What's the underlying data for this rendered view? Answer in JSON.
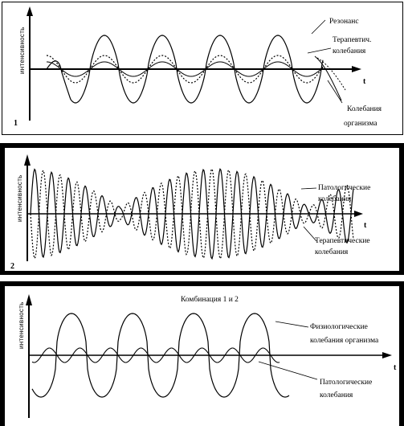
{
  "ylabel": "интенсивность",
  "t_label": "t",
  "panel1": {
    "number": "1",
    "resonance": "Резонанс",
    "therapeutic_line1": "Терапевтич.",
    "therapeutic_line2": "колебания",
    "organism_line1": "Колебания",
    "organism_line2": "организма"
  },
  "panel2": {
    "number": "2",
    "pathological_line1": "Патологические",
    "pathological_line2": "колебания",
    "therapeutic_line1": "Терапевтические",
    "therapeutic_line2": "колебания"
  },
  "panel3": {
    "title": "Комбинация 1 и 2",
    "physiological_line1": "Физиологические",
    "physiological_line2": "колебания организма",
    "pathological_line1": "Патологические",
    "pathological_line2": "колебания"
  }
}
